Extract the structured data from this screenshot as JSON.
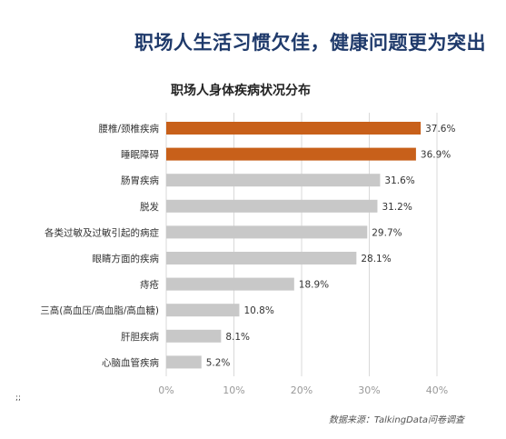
{
  "headline": "职场人生活习惯欠佳，健康问题更为突出",
  "source": "数据来源：TalkingData问卷调查",
  "page_mark": ";;",
  "colors": {
    "highlight": "#c8601a",
    "normal": "#c8c8c8",
    "grid": "#d9d9d9",
    "label": "#333333",
    "tick": "#999999"
  },
  "chart_data": {
    "type": "bar",
    "orientation": "horizontal",
    "title": "职场人身体疾病状况分布",
    "categories": [
      "腰椎/颈椎疾病",
      "睡眠障碍",
      "肠胃疾病",
      "脱发",
      "各类过敏及过敏引起的病症",
      "眼睛方面的疾病",
      "痔疮",
      "三高(高血压/高血脂/高血糖)",
      "肝胆疾病",
      "心脑血管疾病"
    ],
    "values": [
      37.6,
      36.9,
      31.6,
      31.2,
      29.7,
      28.1,
      18.9,
      10.8,
      8.1,
      5.2
    ],
    "value_labels": [
      "37.6%",
      "36.9%",
      "31.6%",
      "31.2%",
      "29.7%",
      "28.1%",
      "18.9%",
      "10.8%",
      "8.1%",
      "5.2%"
    ],
    "highlighted": [
      true,
      true,
      false,
      false,
      false,
      false,
      false,
      false,
      false,
      false
    ],
    "x_ticks": [
      0,
      10,
      20,
      30,
      40
    ],
    "x_tick_labels": [
      "0%",
      "10%",
      "20%",
      "30%",
      "40%"
    ],
    "xlim": [
      0,
      40
    ],
    "grid": true,
    "legend": "none"
  }
}
